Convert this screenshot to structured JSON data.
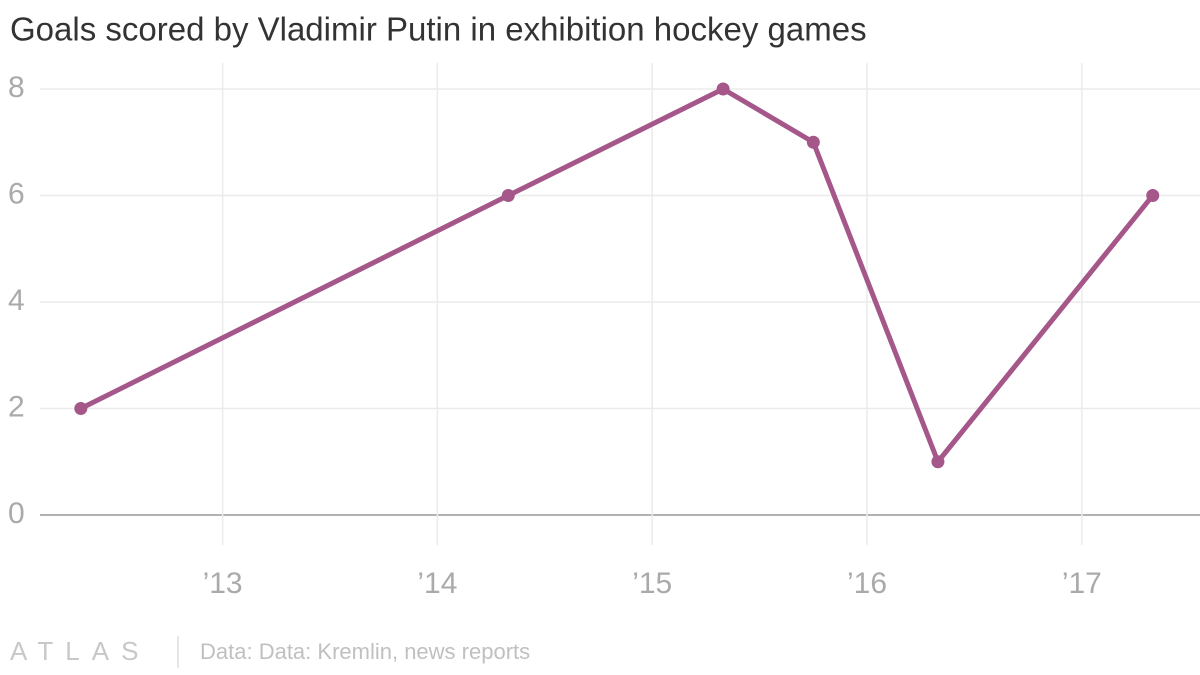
{
  "chart_data": {
    "type": "line",
    "title": "Goals scored by Vladimir Putin in exhibition hockey games",
    "x": [
      2012.34,
      2014.33,
      2015.33,
      2015.75,
      2016.33,
      2017.33
    ],
    "series": [
      {
        "name": "Goals",
        "color": "#a5578a",
        "values": [
          2,
          6,
          8,
          7,
          1,
          6
        ]
      }
    ],
    "xlim": [
      2012.15,
      2017.55
    ],
    "xticks": [
      {
        "value": 2013,
        "label": "’13"
      },
      {
        "value": 2014,
        "label": "’14"
      },
      {
        "value": 2015,
        "label": "’15"
      },
      {
        "value": 2016,
        "label": "’16"
      },
      {
        "value": 2017,
        "label": "’17"
      }
    ],
    "ylim": [
      0,
      8.3
    ],
    "yticks": [
      0,
      2,
      4,
      6,
      8
    ],
    "grid": true,
    "brand": "ATLAS",
    "source": "Data: Data: Kremlin, news reports"
  }
}
